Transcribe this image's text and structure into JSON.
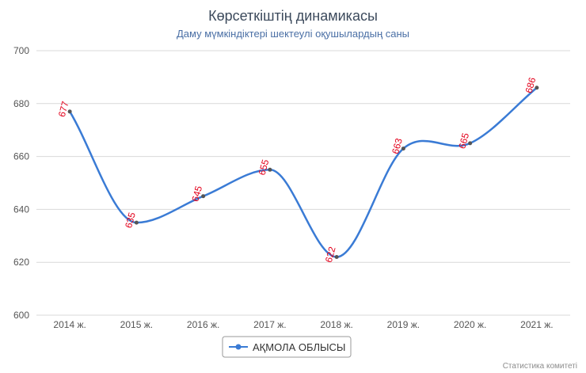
{
  "chart_data": {
    "type": "line",
    "title": "Көрсеткіштің динамикасы",
    "subtitle": "Даму мүмкіндіктері шектеулі оқушылардың  саны",
    "categories": [
      "2014 ж.",
      "2015 ж.",
      "2016 ж.",
      "2017 ж.",
      "2018 ж.",
      "2019 ж.",
      "2020 ж.",
      "2021 ж."
    ],
    "series": [
      {
        "name": "АҚМОЛА ОБЛЫСЫ",
        "values": [
          677,
          635,
          645,
          655,
          622,
          663,
          665,
          686
        ],
        "color": "#3a7bd5"
      }
    ],
    "ylim": [
      600,
      700
    ],
    "yticks": [
      600,
      620,
      640,
      660,
      680,
      700
    ],
    "grid": true,
    "legend_position": "bottom-center",
    "data_label_color": "#e3001b",
    "credits": "Статистика комитеті"
  }
}
